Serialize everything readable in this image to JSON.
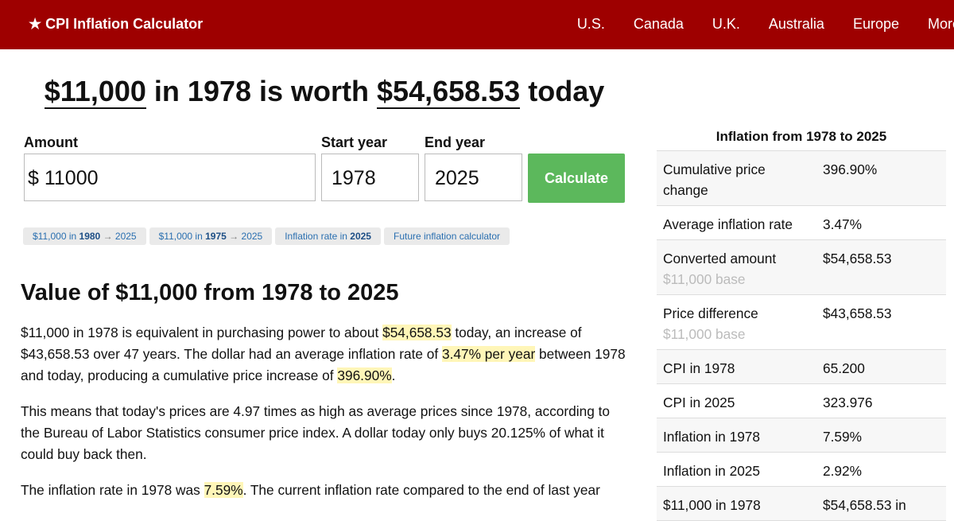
{
  "header": {
    "brand": "★ CPI Inflation Calculator",
    "nav": [
      "U.S.",
      "Canada",
      "U.K.",
      "Australia",
      "Europe",
      "More"
    ]
  },
  "headline": {
    "amount": "$11,000",
    "middle": "in 1978 is worth",
    "result": "$54,658.53",
    "end": "today"
  },
  "form": {
    "amount_label": "Amount",
    "currency": "$",
    "amount": "11000",
    "start_label": "Start year",
    "start": "1978",
    "end_label": "End year",
    "end": "2025",
    "button": "Calculate"
  },
  "chips": [
    {
      "pre": "$11,000 in",
      "bold": "1980",
      "arrow": "→",
      "post": "2025"
    },
    {
      "pre": "$11,000 in",
      "bold": "1975",
      "arrow": "→",
      "post": "2025"
    },
    {
      "pre": "Inflation rate in",
      "bold": "2025"
    },
    {
      "pre": "Future inflation calculator"
    }
  ],
  "article": {
    "heading": "Value of $11,000 from 1978 to 2025",
    "paragraphs": [
      [
        {
          "text": "$11,000 in 1978 is equivalent in purchasing power to about "
        },
        {
          "text": "$54,658.53",
          "highlight": true
        },
        {
          "text": " today, an increase of $43,658.53 over 47 years. The dollar had an average inflation rate of "
        },
        {
          "text": "3.47% per year",
          "highlight": true
        },
        {
          "text": " between 1978 and today, producing a cumulative price increase of "
        },
        {
          "text": "396.90%",
          "highlight": true
        },
        {
          "text": "."
        }
      ],
      [
        {
          "text": "This means that today's prices are 4.97 times as high as average prices since 1978, according to the Bureau of Labor Statistics consumer price index. A dollar today only buys 20.125% of what it could buy back then."
        }
      ],
      [
        {
          "text": "The inflation rate in 1978 was "
        },
        {
          "text": "7.59%",
          "highlight": true
        },
        {
          "text": ". The current inflation rate compared to the end of last year"
        }
      ]
    ]
  },
  "sidebar": {
    "title": "Inflation from 1978 to 2025",
    "rows": [
      {
        "label": "Cumulative price change",
        "value": "396.90%"
      },
      {
        "label": "Average inflation rate",
        "value": "3.47%"
      },
      {
        "label": "Converted amount",
        "value": "$54,658.53",
        "sub": "$11,000 base"
      },
      {
        "label": "Price difference",
        "value": "$43,658.53",
        "sub": "$11,000 base"
      },
      {
        "label": "CPI in 1978",
        "value": "65.200"
      },
      {
        "label": "CPI in 2025",
        "value": "323.976"
      },
      {
        "label": "Inflation in 1978",
        "value": "7.59%"
      },
      {
        "label": "Inflation in 2025",
        "value": "2.92%"
      },
      {
        "label": "$11,000 in 1978",
        "value": "$54,658.53 in"
      }
    ]
  }
}
